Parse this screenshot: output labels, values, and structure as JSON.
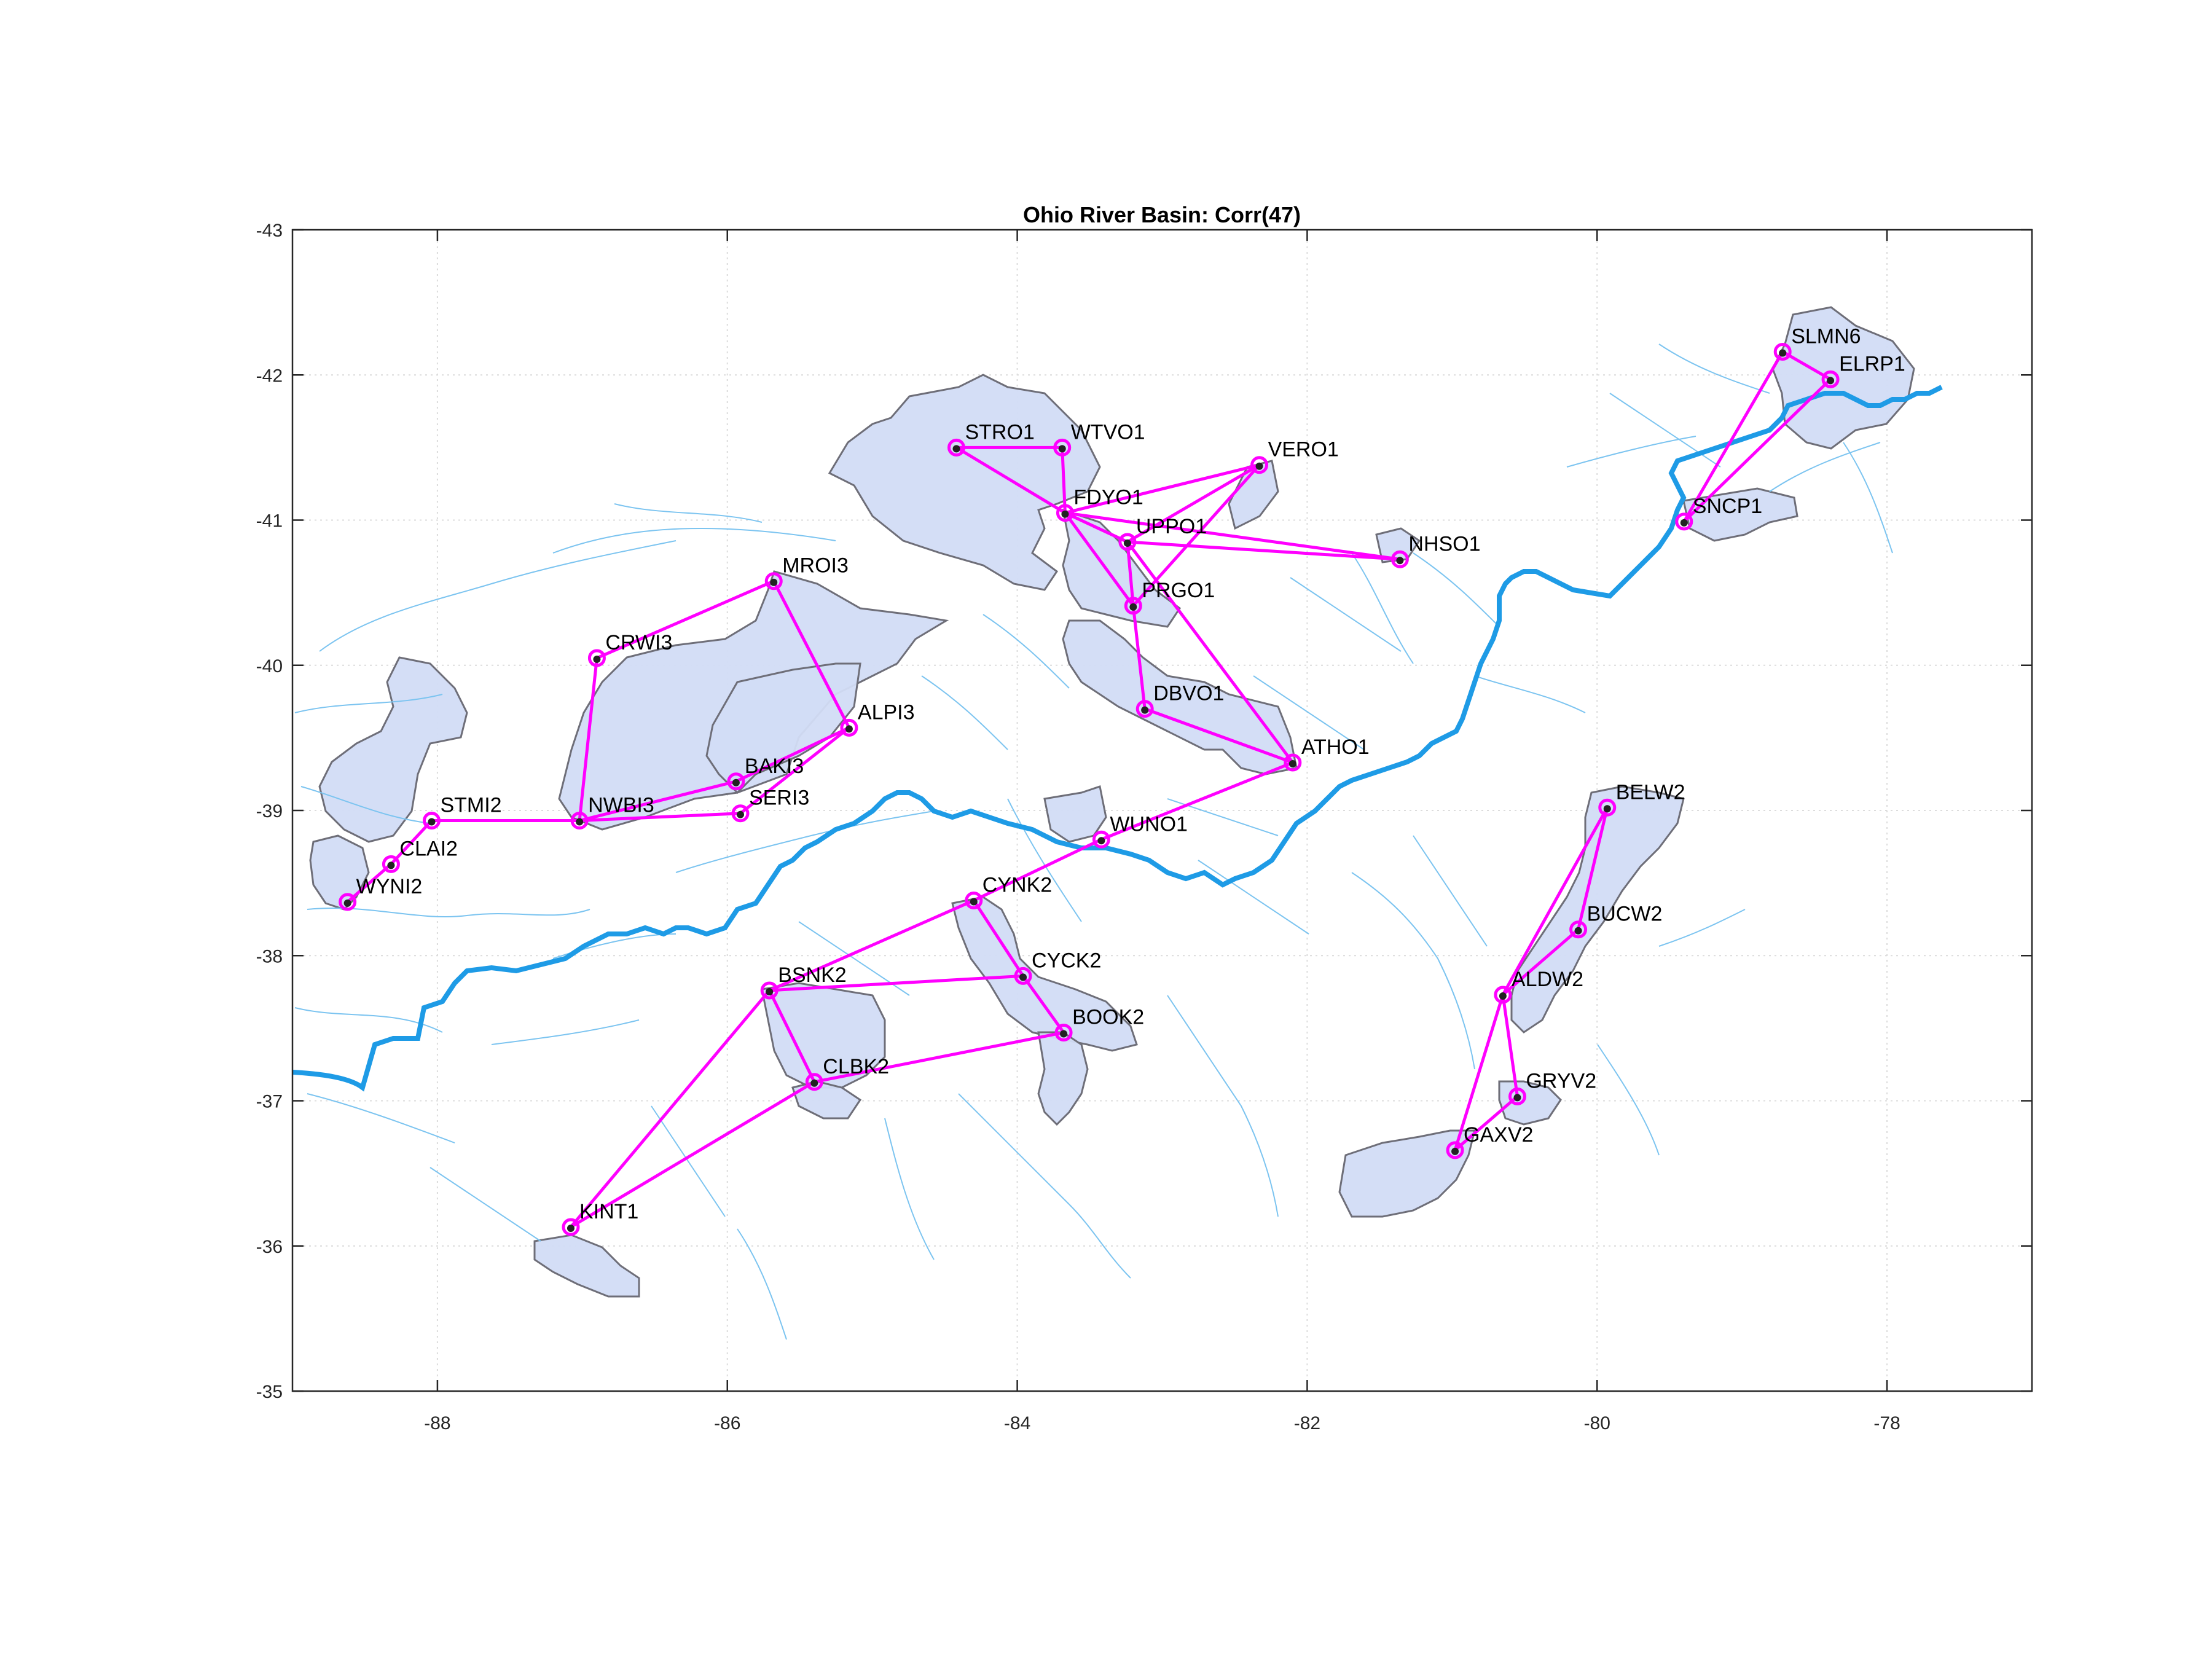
{
  "title": "Ohio River Basin: Corr(47)",
  "colors": {
    "network_line": "#ff00ff",
    "main_river": "#1e9be6",
    "tributary": "#7cc4f0",
    "basin_fill": "#d2dcf5",
    "basin_edge": "#6e6e78",
    "grid": "#dcdcdc",
    "axis": "#262626"
  },
  "chart_data": {
    "type": "map",
    "xlim": [
      -89,
      -77
    ],
    "ylim": [
      -43,
      -35
    ],
    "x_ticks": [
      "-88",
      "-86",
      "-84",
      "-82",
      "-80",
      "-78"
    ],
    "y_ticks": [
      "-43",
      "-42",
      "-41",
      "-40",
      "-39",
      "-38",
      "-37",
      "-36",
      "-35"
    ],
    "x_tick_values": [
      -88,
      -86,
      -84,
      -82,
      -80,
      -78
    ],
    "y_tick_values": [
      -43,
      -42,
      -41,
      -40,
      -39,
      -38,
      -37,
      -36,
      -35
    ],
    "grid": true,
    "stations": [
      {
        "id": "SLMN6",
        "lon": -78.72,
        "lat": -42.16
      },
      {
        "id": "ELRP1",
        "lon": -78.39,
        "lat": -41.97
      },
      {
        "id": "SNCP1",
        "lon": -79.4,
        "lat": -40.99
      },
      {
        "id": "STRO1",
        "lon": -84.42,
        "lat": -41.5
      },
      {
        "id": "WTVO1",
        "lon": -83.69,
        "lat": -41.5
      },
      {
        "id": "VERO1",
        "lon": -82.33,
        "lat": -41.38
      },
      {
        "id": "FDYO1",
        "lon": -83.67,
        "lat": -41.05
      },
      {
        "id": "UPPO1",
        "lon": -83.24,
        "lat": -40.85
      },
      {
        "id": "NHSO1",
        "lon": -81.36,
        "lat": -40.73
      },
      {
        "id": "PRGO1",
        "lon": -83.2,
        "lat": -40.41
      },
      {
        "id": "MROI3",
        "lon": -85.68,
        "lat": -40.58
      },
      {
        "id": "CRWI3",
        "lon": -86.9,
        "lat": -40.05
      },
      {
        "id": "ALPI3",
        "lon": -85.16,
        "lat": -39.57
      },
      {
        "id": "DBVO1",
        "lon": -83.12,
        "lat": -39.7
      },
      {
        "id": "ATHO1",
        "lon": -82.1,
        "lat": -39.33
      },
      {
        "id": "BAKI3",
        "lon": -85.94,
        "lat": -39.2
      },
      {
        "id": "SERI3",
        "lon": -85.91,
        "lat": -38.98
      },
      {
        "id": "NWBI3",
        "lon": -87.02,
        "lat": -38.93
      },
      {
        "id": "STMI2",
        "lon": -88.04,
        "lat": -38.93
      },
      {
        "id": "CLAI2",
        "lon": -88.32,
        "lat": -38.63
      },
      {
        "id": "WYNI2",
        "lon": -88.62,
        "lat": -38.37
      },
      {
        "id": "WUNO1",
        "lon": -83.42,
        "lat": -38.8
      },
      {
        "id": "CYNK2",
        "lon": -84.3,
        "lat": -38.38
      },
      {
        "id": "CYCK2",
        "lon": -83.96,
        "lat": -37.86
      },
      {
        "id": "BSNK2",
        "lon": -85.71,
        "lat": -37.76
      },
      {
        "id": "BOOK2",
        "lon": -83.68,
        "lat": -37.47
      },
      {
        "id": "CLBK2",
        "lon": -85.4,
        "lat": -37.13
      },
      {
        "id": "KINT1",
        "lon": -87.08,
        "lat": -36.13
      },
      {
        "id": "BELW2",
        "lon": -79.93,
        "lat": -39.02
      },
      {
        "id": "BUCW2",
        "lon": -80.13,
        "lat": -38.18
      },
      {
        "id": "ALDW2",
        "lon": -80.65,
        "lat": -37.73
      },
      {
        "id": "GRYV2",
        "lon": -80.55,
        "lat": -37.03
      },
      {
        "id": "GAXV2",
        "lon": -80.98,
        "lat": -36.66
      }
    ],
    "links": [
      [
        "SLMN6",
        "ELRP1"
      ],
      [
        "SLMN6",
        "SNCP1"
      ],
      [
        "ELRP1",
        "SNCP1"
      ],
      [
        "STRO1",
        "WTVO1"
      ],
      [
        "STRO1",
        "FDYO1"
      ],
      [
        "WTVO1",
        "FDYO1"
      ],
      [
        "FDYO1",
        "VERO1"
      ],
      [
        "FDYO1",
        "UPPO1"
      ],
      [
        "FDYO1",
        "NHSO1"
      ],
      [
        "FDYO1",
        "PRGO1"
      ],
      [
        "UPPO1",
        "VERO1"
      ],
      [
        "UPPO1",
        "NHSO1"
      ],
      [
        "UPPO1",
        "PRGO1"
      ],
      [
        "VERO1",
        "PRGO1"
      ],
      [
        "UPPO1",
        "ATHO1"
      ],
      [
        "PRGO1",
        "DBVO1"
      ],
      [
        "DBVO1",
        "ATHO1"
      ],
      [
        "MROI3",
        "CRWI3"
      ],
      [
        "MROI3",
        "ALPI3"
      ],
      [
        "ALPI3",
        "BAKI3"
      ],
      [
        "ALPI3",
        "SERI3"
      ],
      [
        "CRWI3",
        "NWBI3"
      ],
      [
        "NWBI3",
        "BAKI3"
      ],
      [
        "NWBI3",
        "SERI3"
      ],
      [
        "NWBI3",
        "STMI2"
      ],
      [
        "STMI2",
        "CLAI2"
      ],
      [
        "CLAI2",
        "WYNI2"
      ],
      [
        "ATHO1",
        "WUNO1"
      ],
      [
        "WUNO1",
        "CYNK2"
      ],
      [
        "CYNK2",
        "BSNK2"
      ],
      [
        "CYNK2",
        "CYCK2"
      ],
      [
        "CYCK2",
        "BSNK2"
      ],
      [
        "CYCK2",
        "BOOK2"
      ],
      [
        "BOOK2",
        "CLBK2"
      ],
      [
        "BSNK2",
        "CLBK2"
      ],
      [
        "BSNK2",
        "KINT1"
      ],
      [
        "CLBK2",
        "KINT1"
      ],
      [
        "BELW2",
        "BUCW2"
      ],
      [
        "BELW2",
        "ALDW2"
      ],
      [
        "ALDW2",
        "BUCW2"
      ],
      [
        "ALDW2",
        "GRYV2"
      ],
      [
        "ALDW2",
        "GAXV2"
      ],
      [
        "GRYV2",
        "GAXV2"
      ]
    ]
  }
}
